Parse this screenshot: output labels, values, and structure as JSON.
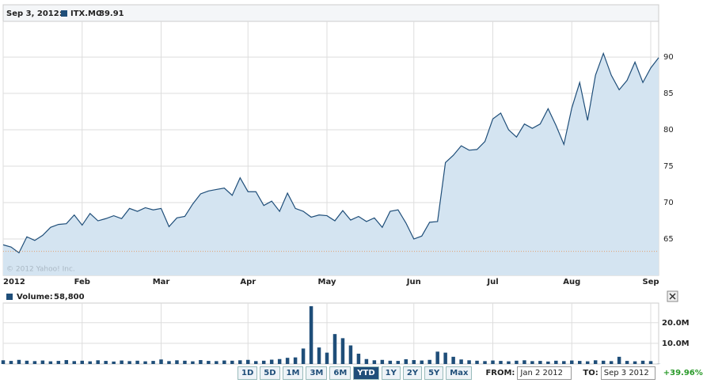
{
  "chart_data": [
    {
      "type": "area",
      "date_label": "Sep 3, 2012:",
      "last_value": 89.91,
      "copyright": "© 2012 Yahoo! Inc.",
      "categories": [
        "2012",
        null,
        null,
        null,
        null,
        null,
        null,
        null,
        null,
        null,
        "Feb",
        null,
        null,
        null,
        null,
        null,
        null,
        null,
        null,
        null,
        "Mar",
        null,
        null,
        null,
        null,
        null,
        null,
        null,
        null,
        null,
        null,
        "Apr",
        null,
        null,
        null,
        null,
        null,
        null,
        null,
        null,
        null,
        "May",
        null,
        null,
        null,
        null,
        null,
        null,
        null,
        null,
        null,
        null,
        "Jun",
        null,
        null,
        null,
        null,
        null,
        null,
        null,
        null,
        null,
        "Jul",
        null,
        null,
        null,
        null,
        null,
        null,
        null,
        null,
        null,
        "Aug",
        null,
        null,
        null,
        null,
        null,
        null,
        null,
        null,
        null,
        "Sep",
        null
      ],
      "series": [
        {
          "name": "ITX.MC",
          "color": "#1f4e79",
          "values": [
            64.2,
            63.9,
            63.1,
            65.3,
            64.8,
            65.5,
            66.6,
            67.0,
            67.1,
            68.3,
            66.9,
            68.5,
            67.5,
            67.8,
            68.2,
            67.8,
            69.2,
            68.8,
            69.3,
            69.0,
            69.2,
            66.7,
            67.9,
            68.1,
            69.8,
            71.2,
            71.6,
            71.8,
            72.0,
            71.0,
            73.4,
            71.5,
            71.5,
            69.6,
            70.2,
            68.8,
            71.3,
            69.2,
            68.8,
            68.0,
            68.3,
            68.2,
            67.5,
            68.9,
            67.6,
            68.1,
            67.4,
            67.9,
            66.6,
            68.8,
            69.0,
            67.2,
            65.0,
            65.4,
            67.3,
            67.4,
            75.5,
            76.5,
            77.8,
            77.2,
            77.3,
            78.4,
            81.5,
            82.3,
            80.0,
            79.0,
            80.8,
            80.2,
            80.8,
            82.9,
            80.6,
            78.0,
            83.0,
            86.5,
            81.3,
            87.5,
            90.5,
            87.5,
            85.5,
            86.8,
            89.3,
            86.5,
            88.5,
            89.91
          ]
        }
      ],
      "ylim": [
        60,
        94.9
      ],
      "yticks": [
        65,
        70,
        75,
        80,
        85,
        90
      ],
      "reference_line": 63.3,
      "grid": true
    },
    {
      "type": "bar",
      "last_value_label": "58,800",
      "series": [
        {
          "name": "Volume:",
          "color": "#1f4e79",
          "values": [
            1.8,
            1.5,
            2.0,
            1.6,
            1.4,
            1.7,
            1.3,
            1.5,
            1.9,
            1.4,
            1.6,
            1.3,
            1.8,
            1.5,
            1.2,
            1.7,
            1.4,
            1.6,
            1.3,
            1.5,
            2.2,
            1.4,
            1.8,
            1.6,
            1.3,
            1.9,
            1.5,
            1.4,
            1.7,
            1.6,
            1.8,
            2.0,
            1.4,
            1.6,
            2.1,
            2.4,
            3.0,
            3.2,
            7.5,
            28.0,
            8.0,
            5.5,
            14.5,
            12.5,
            9.0,
            5.0,
            2.4,
            1.8,
            2.0,
            1.6,
            1.5,
            2.3,
            1.9,
            1.7,
            2.0,
            6.0,
            5.5,
            3.5,
            2.2,
            1.8,
            1.6,
            1.4,
            1.7,
            1.5,
            1.3,
            1.6,
            1.8,
            1.4,
            1.5,
            1.2,
            1.6,
            1.4,
            1.7,
            1.5,
            1.3,
            1.8,
            1.6,
            1.4,
            3.5,
            1.5,
            1.3,
            1.6,
            1.4,
            0.0588
          ]
        }
      ],
      "ylim": [
        0,
        29.5
      ],
      "yticks": [
        {
          "value": 10,
          "label": "10.0M"
        },
        {
          "value": 20,
          "label": "20.0M"
        }
      ],
      "grid": true
    }
  ],
  "controls": {
    "ranges": [
      "1D",
      "5D",
      "1M",
      "3M",
      "6M",
      "YTD",
      "1Y",
      "2Y",
      "5Y",
      "Max"
    ],
    "selected": "YTD",
    "from_label": "FROM:",
    "from": "Jan 2 2012",
    "to_label": "TO:",
    "to": "Sep 3 2012",
    "change": "+39.96%"
  }
}
